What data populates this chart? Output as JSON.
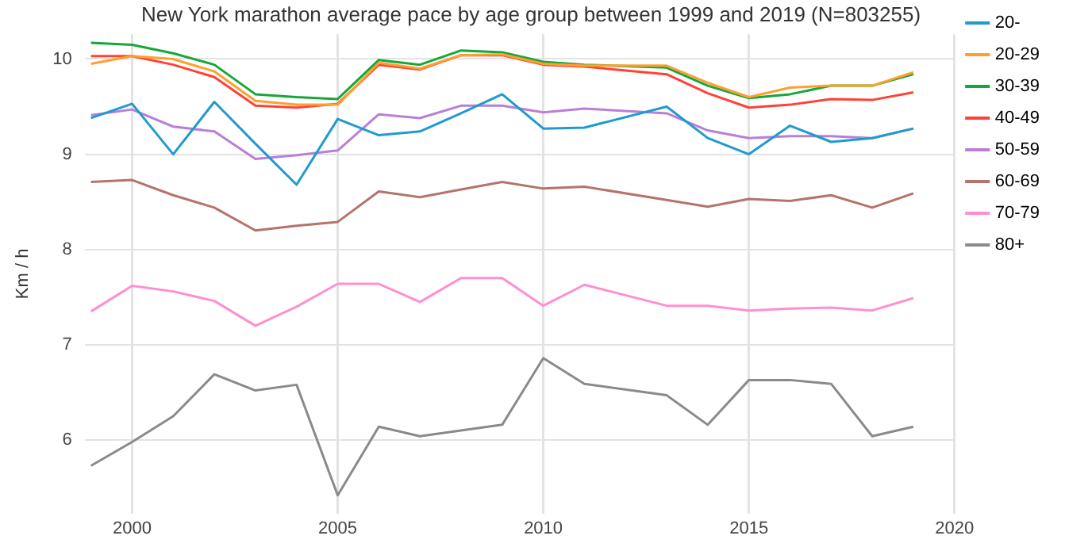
{
  "chart_data": {
    "type": "line",
    "title": "New York marathon average pace by age group between 1999 and 2019 (N=803255)",
    "ylabel": "Km / h",
    "x": [
      1999,
      2000,
      2001,
      2002,
      2003,
      2004,
      2005,
      2006,
      2007,
      2008,
      2009,
      2010,
      2011,
      2013,
      2014,
      2015,
      2016,
      2017,
      2018,
      2019
    ],
    "xlim": [
      1998.85,
      2020
    ],
    "xticks": [
      2000,
      2005,
      2010,
      2015,
      2020
    ],
    "ylim": [
      5.23,
      10.26
    ],
    "yticks": [
      6,
      7,
      8,
      9,
      10
    ],
    "grid": true,
    "legend": "right",
    "marker": "none",
    "line_style": "solid",
    "series": [
      {
        "name": "20-",
        "color": "#1f9bcf",
        "values": [
          9.38,
          9.53,
          9.0,
          9.55,
          9.11,
          8.68,
          9.37,
          9.2,
          9.24,
          9.43,
          9.63,
          9.27,
          9.28,
          9.5,
          9.17,
          9.0,
          9.3,
          9.13,
          9.17,
          9.27
        ]
      },
      {
        "name": "20-29",
        "color": "#ff9f2e",
        "values": [
          9.95,
          10.03,
          10.0,
          9.87,
          9.56,
          9.52,
          9.52,
          9.96,
          9.9,
          10.04,
          10.05,
          9.95,
          9.93,
          9.93,
          9.75,
          9.6,
          9.7,
          9.72,
          9.72,
          9.86
        ]
      },
      {
        "name": "30-39",
        "color": "#14a83b",
        "values": [
          10.17,
          10.15,
          10.06,
          9.94,
          9.63,
          9.6,
          9.58,
          9.99,
          9.94,
          10.09,
          10.07,
          9.97,
          9.94,
          9.91,
          9.72,
          9.59,
          9.63,
          9.72,
          9.72,
          9.84
        ]
      },
      {
        "name": "40-49",
        "color": "#ff4136",
        "values": [
          10.03,
          10.03,
          9.94,
          9.81,
          9.51,
          9.49,
          9.53,
          9.94,
          9.89,
          10.04,
          10.04,
          9.94,
          9.92,
          9.84,
          9.64,
          9.49,
          9.52,
          9.58,
          9.57,
          9.65
        ]
      },
      {
        "name": "50-59",
        "color": "#b97fd8",
        "values": [
          9.41,
          9.47,
          9.29,
          9.24,
          8.95,
          8.99,
          9.04,
          9.42,
          9.38,
          9.51,
          9.51,
          9.44,
          9.48,
          9.43,
          9.25,
          9.17,
          9.19,
          9.19,
          9.17,
          9.27
        ]
      },
      {
        "name": "60-69",
        "color": "#b5736b",
        "values": [
          8.71,
          8.73,
          8.57,
          8.44,
          8.2,
          8.25,
          8.29,
          8.61,
          8.55,
          8.63,
          8.71,
          8.64,
          8.66,
          8.52,
          8.45,
          8.53,
          8.51,
          8.57,
          8.44,
          8.59
        ]
      },
      {
        "name": "70-79",
        "color": "#ff8fd0",
        "values": [
          7.35,
          7.62,
          7.56,
          7.46,
          7.2,
          7.4,
          7.64,
          7.64,
          7.45,
          7.7,
          7.7,
          7.41,
          7.63,
          7.41,
          7.41,
          7.36,
          7.38,
          7.39,
          7.36,
          7.49
        ]
      },
      {
        "name": "80+",
        "color": "#8a8a8a",
        "values": [
          5.73,
          5.98,
          6.25,
          6.69,
          6.52,
          6.58,
          5.42,
          6.14,
          6.04,
          6.1,
          6.16,
          6.86,
          6.59,
          6.47,
          6.16,
          6.63,
          6.63,
          6.59,
          6.04,
          6.14
        ]
      }
    ]
  }
}
